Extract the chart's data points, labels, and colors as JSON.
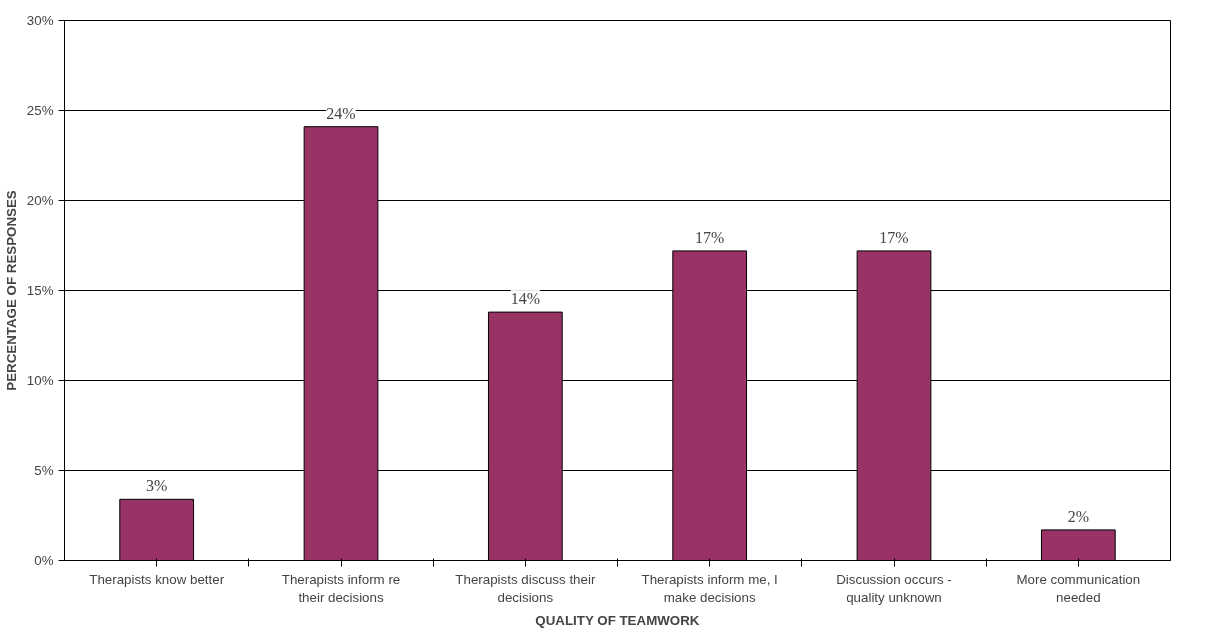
{
  "chart_data": {
    "type": "bar",
    "xlabel": "QUALITY OF TEAMWORK",
    "ylabel": "PERCENTAGE OF RESPONSES",
    "categories": [
      "Therapists know better",
      "Therapists inform re their decisions",
      "Therapists discuss their decisions",
      "Therapists inform me, I make decisions",
      "Discussion occurs - quality unknown",
      "More communication needed"
    ],
    "values": [
      3.4,
      24.1,
      13.8,
      17.2,
      17.2,
      1.7
    ],
    "value_labels": [
      "3%",
      "24%",
      "14%",
      "17%",
      "17%",
      "2%"
    ],
    "color": "#993366",
    "ylim": [
      0,
      30
    ],
    "yticks": [
      {
        "value": 0,
        "label": "0%"
      },
      {
        "value": 5,
        "label": "5%"
      },
      {
        "value": 10,
        "label": "10%"
      },
      {
        "value": 15,
        "label": "15%"
      },
      {
        "value": 20,
        "label": "20%"
      },
      {
        "value": 25,
        "label": "25%"
      },
      {
        "value": 30,
        "label": "30%"
      }
    ],
    "grid": "y"
  }
}
